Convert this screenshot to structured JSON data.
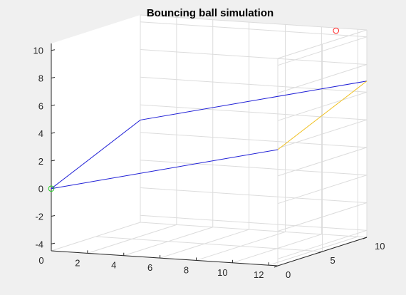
{
  "chart_data": {
    "type": "line3d",
    "title": "Bouncing ball simulation",
    "xlabel": "",
    "ylabel": "",
    "zlabel": "",
    "grid": true,
    "xlim": [
      0,
      12.5
    ],
    "ylim": [
      0,
      10
    ],
    "zlim": [
      -4.5,
      10.5
    ],
    "x_ticks": [
      "0",
      "2",
      "4",
      "6",
      "8",
      "10",
      "12"
    ],
    "y_ticks": [
      "0",
      "5",
      "10"
    ],
    "z_ticks": [
      "-4",
      "-2",
      "0",
      "2",
      "4",
      "6",
      "8",
      "10"
    ],
    "colors": {
      "figure_bg": "#f0f0f0",
      "axes_bg": "#ffffff",
      "grid": "#dcdcdc",
      "axis": "#262626",
      "path": "#1f1fd6",
      "path_end": "#f0c020",
      "start_marker": "#22cc22",
      "ball_marker": "#ff2020"
    },
    "series": [
      {
        "values": [
          {
            "x": 0,
            "y": 0,
            "z": 0
          },
          {
            "x": 0,
            "y": 10,
            "z": 2.9
          },
          {
            "x": 12.5,
            "y": 10,
            "z": 6.8
          }
        ],
        "color": "path"
      },
      {
        "values": [
          {
            "x": 0,
            "y": 0,
            "z": 0
          },
          {
            "x": 12.5,
            "y": 0,
            "z": 3.9
          }
        ],
        "color": "path"
      },
      {
        "values": [
          {
            "x": 12.5,
            "y": 0,
            "z": 3.9
          },
          {
            "x": 12.5,
            "y": 10,
            "z": 6.8
          }
        ],
        "color": "path_end"
      }
    ],
    "markers": [
      {
        "x": 0,
        "y": 0,
        "z": 0,
        "color": "start_marker",
        "shape": "circle"
      },
      {
        "x": 10.8,
        "y": 10,
        "z": 10.3,
        "color": "ball_marker",
        "shape": "circle"
      }
    ]
  }
}
